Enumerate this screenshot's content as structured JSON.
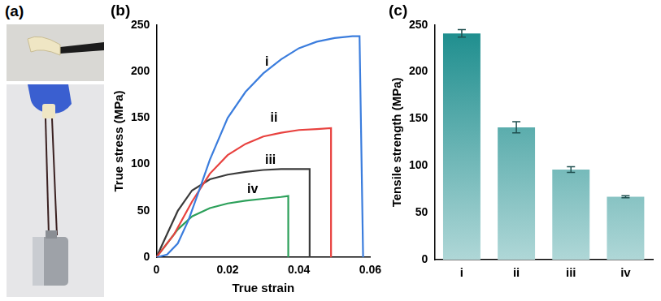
{
  "figure": {
    "panel_label": "(a)"
  },
  "chart_data": [
    {
      "type": "line",
      "title": "(b)",
      "x_label": "True strain",
      "y_label": "True stress (MPa)",
      "xlim": [
        0,
        0.06
      ],
      "xticks": [
        0,
        0.02,
        0.04,
        0.06
      ],
      "ylim": [
        0,
        250
      ],
      "yticks": [
        0,
        50,
        100,
        150,
        200,
        250
      ],
      "grid": false,
      "series": [
        {
          "name": "i",
          "color": "#3b7ddd",
          "x": [
            0,
            0.003,
            0.006,
            0.009,
            0.012,
            0.015,
            0.02,
            0.025,
            0.03,
            0.035,
            0.04,
            0.045,
            0.05,
            0.055,
            0.057,
            0.058
          ],
          "values": [
            0,
            3,
            15,
            40,
            72,
            105,
            150,
            178,
            198,
            213,
            225,
            232,
            236,
            238,
            238,
            0
          ]
        },
        {
          "name": "ii",
          "color": "#e8423f",
          "x": [
            0,
            0.005,
            0.01,
            0.015,
            0.02,
            0.025,
            0.03,
            0.035,
            0.04,
            0.045,
            0.049,
            0.049
          ],
          "values": [
            0,
            25,
            60,
            90,
            110,
            122,
            130,
            134,
            137,
            138,
            139,
            0
          ]
        },
        {
          "name": "iii",
          "color": "#3a3a3a",
          "x": [
            0,
            0.003,
            0.006,
            0.01,
            0.015,
            0.02,
            0.025,
            0.03,
            0.035,
            0.04,
            0.043,
            0.043
          ],
          "values": [
            0,
            25,
            50,
            72,
            84,
            89,
            92,
            94,
            95,
            95,
            95,
            0
          ]
        },
        {
          "name": "iv",
          "color": "#2ca05a",
          "x": [
            0,
            0.003,
            0.006,
            0.01,
            0.015,
            0.02,
            0.025,
            0.03,
            0.035,
            0.037,
            0.037
          ],
          "values": [
            0,
            15,
            30,
            44,
            53,
            58,
            61,
            63,
            65,
            66,
            0
          ]
        }
      ],
      "annotations": [
        {
          "text": "i",
          "x": 0.031,
          "y": 210
        },
        {
          "text": "ii",
          "x": 0.033,
          "y": 150
        },
        {
          "text": "iii",
          "x": 0.032,
          "y": 104
        },
        {
          "text": "iv",
          "x": 0.027,
          "y": 73
        }
      ]
    },
    {
      "type": "bar",
      "title": "(c)",
      "y_label": "Tensile strength (MPa)",
      "categories": [
        "i",
        "ii",
        "iii",
        "iv"
      ],
      "values": [
        241,
        141,
        96,
        67
      ],
      "errors": [
        4,
        6,
        3,
        1
      ],
      "color": "#1a8c8c",
      "ylim": [
        0,
        250
      ],
      "yticks": [
        0,
        50,
        100,
        150,
        200,
        250
      ],
      "grid": false
    }
  ]
}
